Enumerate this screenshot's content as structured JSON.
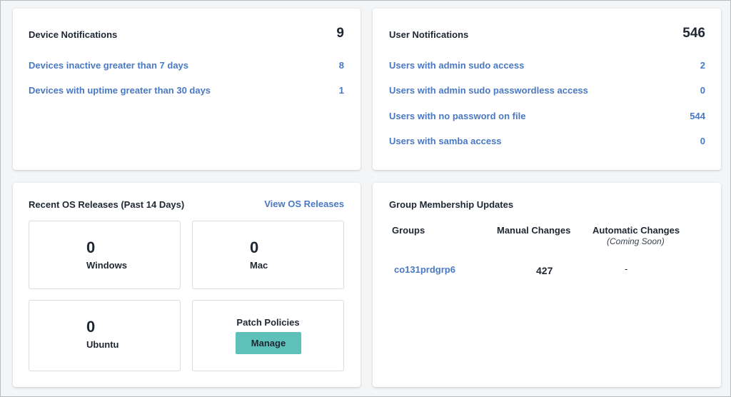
{
  "device_notifications": {
    "title": "Device Notifications",
    "count": "9",
    "rows": [
      {
        "label": "Devices inactive greater than 7 days",
        "value": "8"
      },
      {
        "label": "Devices with uptime greater than 30 days",
        "value": "1"
      }
    ]
  },
  "user_notifications": {
    "title": "User Notifications",
    "count": "546",
    "rows": [
      {
        "label": "Users with admin sudo access",
        "value": "2"
      },
      {
        "label": "Users with admin sudo passwordless access",
        "value": "0"
      },
      {
        "label": "Users with no password on file",
        "value": "544"
      },
      {
        "label": "Users with samba access",
        "value": "0"
      }
    ]
  },
  "os_releases": {
    "title": "Recent OS Releases (Past 14 Days)",
    "view_link": "View OS Releases",
    "tiles": [
      {
        "count": "0",
        "name": "Windows"
      },
      {
        "count": "0",
        "name": "Mac"
      },
      {
        "count": "0",
        "name": "Ubuntu"
      }
    ],
    "patch": {
      "title": "Patch Policies",
      "button": "Manage"
    }
  },
  "group_updates": {
    "title": "Group Membership Updates",
    "columns": {
      "groups": "Groups",
      "manual": "Manual Changes",
      "automatic": "Automatic Changes",
      "automatic_note": "(Coming Soon)"
    },
    "rows": [
      {
        "group": "co131prdgrp6",
        "manual": "427",
        "automatic": "-"
      }
    ]
  },
  "colors": {
    "link": "#4a78c2",
    "button": "#5dc1ba",
    "background": "#f4f5f7"
  }
}
